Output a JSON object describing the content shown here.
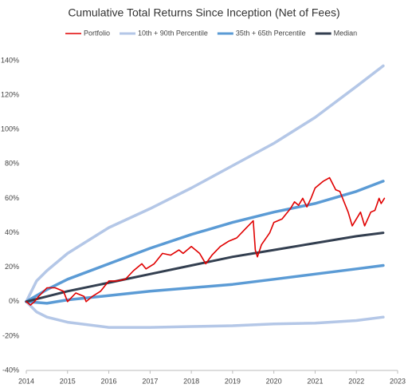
{
  "chart_data": {
    "type": "line",
    "title": "Cumulative Total Returns Since Inception (Net of Fees)",
    "xlim": [
      2014,
      2023
    ],
    "xticks": [
      2014,
      2015,
      2016,
      2017,
      2018,
      2019,
      2020,
      2021,
      2022,
      2023
    ],
    "ylim": [
      -40,
      140
    ],
    "yticks": [
      {
        "value": -40,
        "label": "-40%"
      },
      {
        "value": -20,
        "label": "-20%"
      },
      {
        "value": 0,
        "label": "0%"
      },
      {
        "value": 20,
        "label": "20%"
      },
      {
        "value": 40,
        "label": "40%"
      },
      {
        "value": 60,
        "label": "60%"
      },
      {
        "value": 80,
        "label": "80%"
      },
      {
        "value": 100,
        "label": "100%"
      },
      {
        "value": 120,
        "label": "120%"
      },
      {
        "value": 140,
        "label": "140%"
      }
    ],
    "grid": false,
    "legend": "top",
    "series": [
      {
        "name": "Portfolio",
        "color": "#e00000",
        "x": [
          2014,
          2014.1,
          2014.2,
          2014.3,
          2014.5,
          2014.7,
          2014.9,
          2015.0,
          2015.2,
          2015.4,
          2015.45,
          2015.6,
          2015.8,
          2016.0,
          2016.2,
          2016.4,
          2016.6,
          2016.8,
          2016.9,
          2017.1,
          2017.3,
          2017.5,
          2017.7,
          2017.8,
          2018.0,
          2018.2,
          2018.35,
          2018.5,
          2018.7,
          2018.9,
          2019.1,
          2019.3,
          2019.5,
          2019.55,
          2019.6,
          2019.7,
          2019.9,
          2020.0,
          2020.2,
          2020.4,
          2020.5,
          2020.6,
          2020.7,
          2020.8,
          2020.9,
          2021.0,
          2021.2,
          2021.35,
          2021.5,
          2021.6,
          2021.8,
          2021.9,
          2022.1,
          2022.2,
          2022.35,
          2022.45,
          2022.55,
          2022.6,
          2022.68
        ],
        "values": [
          0,
          -2,
          0,
          3,
          8,
          8,
          6,
          0,
          5,
          3,
          0,
          3,
          6,
          12,
          12,
          13,
          18,
          22,
          19,
          22,
          28,
          27,
          30,
          28,
          32,
          28,
          22,
          27,
          32,
          35,
          37,
          42,
          47,
          30,
          26,
          33,
          40,
          46,
          48,
          54,
          58,
          56,
          60,
          55,
          60,
          66,
          70,
          72,
          65,
          64,
          52,
          44,
          52,
          44,
          52,
          53,
          60,
          57,
          60
        ]
      },
      {
        "name": "10th + 90th Percentile",
        "color": "#b4c7e7",
        "x": [
          2014,
          2014.25,
          2014.5,
          2015,
          2016,
          2017,
          2018,
          2019,
          2020,
          2021,
          2022,
          2022.65
        ],
        "upper": [
          0,
          12,
          18,
          28,
          43,
          54,
          66,
          79,
          92,
          107,
          125,
          137
        ],
        "lower": [
          0,
          -6,
          -9,
          -12,
          -15,
          -15,
          -14.5,
          -14,
          -13,
          -12.5,
          -11,
          -9
        ]
      },
      {
        "name": "35th + 65th Percentile",
        "color": "#5b9bd5",
        "x": [
          2014,
          2014.5,
          2015,
          2016,
          2017,
          2018,
          2019,
          2020,
          2021,
          2022,
          2022.65
        ],
        "upper": [
          0,
          7,
          13,
          22,
          31,
          39,
          46,
          52,
          57,
          64,
          70
        ],
        "lower": [
          0,
          -1,
          1,
          3.5,
          6,
          8,
          10,
          13,
          16,
          19,
          21
        ]
      },
      {
        "name": "Median",
        "color": "#333f50",
        "x": [
          2014,
          2015,
          2016,
          2017,
          2018,
          2019,
          2020,
          2021,
          2022,
          2022.65
        ],
        "values": [
          0,
          6,
          11,
          16,
          21,
          26,
          30,
          34,
          38,
          40
        ]
      }
    ]
  }
}
